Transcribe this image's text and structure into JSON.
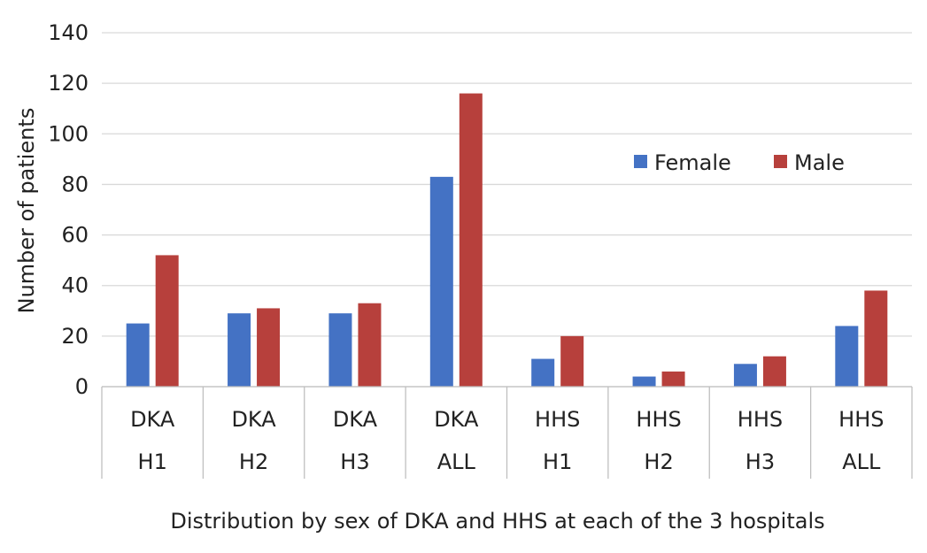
{
  "chart_data": {
    "type": "bar",
    "categories": [
      [
        "DKA",
        "H1"
      ],
      [
        "DKA",
        "H2"
      ],
      [
        "DKA",
        "H3"
      ],
      [
        "DKA",
        "ALL"
      ],
      [
        "HHS",
        "H1"
      ],
      [
        "HHS",
        "H2"
      ],
      [
        "HHS",
        "H3"
      ],
      [
        "HHS",
        "ALL"
      ]
    ],
    "series": [
      {
        "name": "Female",
        "color": "#4472c4",
        "values": [
          25,
          29,
          29,
          83,
          11,
          4,
          9,
          24
        ]
      },
      {
        "name": "Male",
        "color": "#b7403c",
        "values": [
          52,
          31,
          33,
          116,
          20,
          6,
          12,
          38
        ]
      }
    ],
    "title": "",
    "xlabel": "Distribution by sex of DKA and HHS at each of the 3 hospitals",
    "ylabel": "Number of patients",
    "ylim": [
      0,
      140
    ],
    "yticks": [
      0,
      20,
      40,
      60,
      80,
      100,
      120,
      140
    ],
    "grid": true,
    "legend_position": "upper-right"
  }
}
